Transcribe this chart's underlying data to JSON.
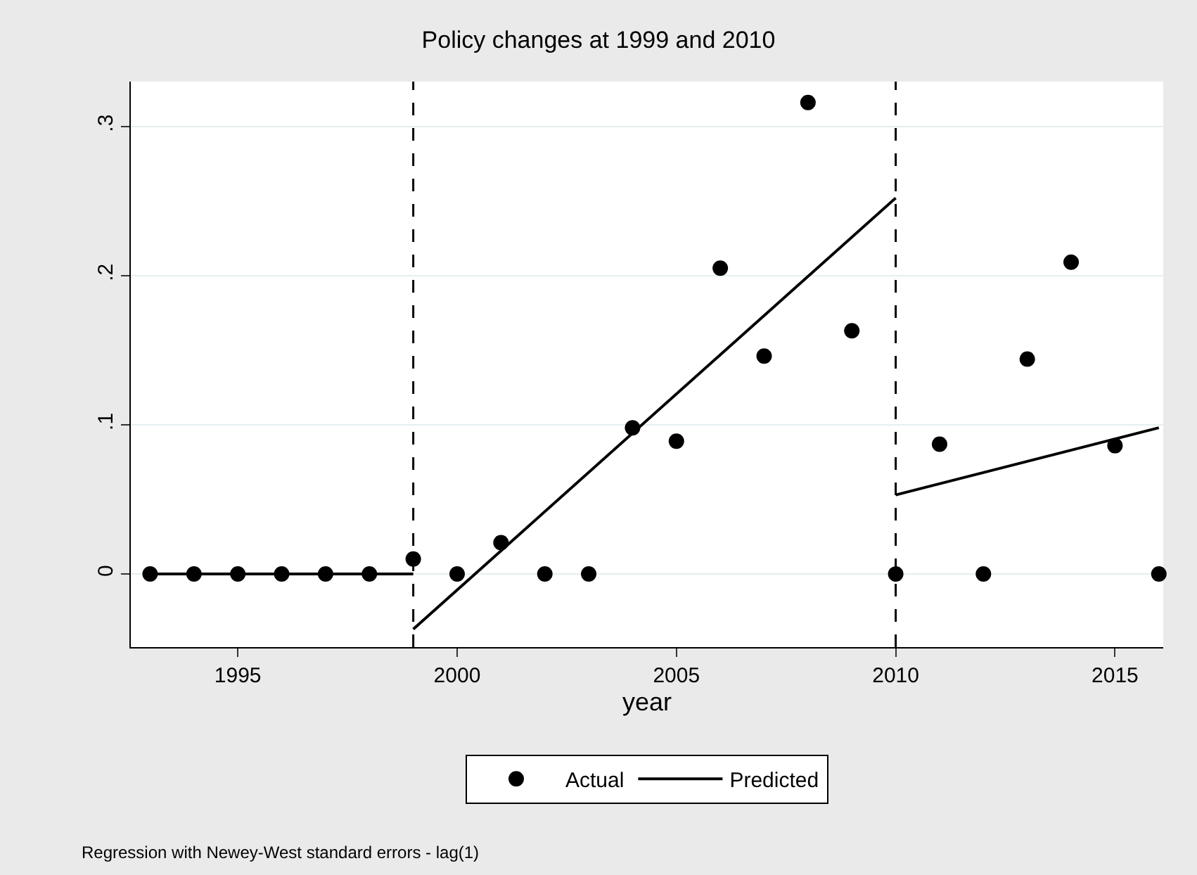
{
  "chart_data": {
    "type": "scatter",
    "title": "Policy changes at 1999 and 2010",
    "xlabel": "year",
    "annotations": [
      "Regression with Newey-West standard errors - lag(1)"
    ],
    "series": [
      {
        "name": "Actual",
        "color": "#000000",
        "marker": "circle",
        "x": [
          1993,
          1994,
          1995,
          1996,
          1997,
          1998,
          1999,
          2000,
          2001,
          2002,
          2003,
          2004,
          2005,
          2006,
          2007,
          2008,
          2009,
          2010,
          2011,
          2012,
          2013,
          2014,
          2015,
          2016
        ],
        "values": [
          0,
          0,
          0,
          0,
          0,
          0,
          0.01,
          0,
          0.021,
          0,
          0,
          0.098,
          0.089,
          0.205,
          0.146,
          0.316,
          0.163,
          0,
          0.087,
          0,
          0.144,
          0.209,
          0.086,
          0
        ]
      },
      {
        "name": "Predicted",
        "type": "line",
        "color": "#000000",
        "line_style": "solid",
        "x": [
          1993,
          1999
        ],
        "values": [
          0,
          0
        ]
      },
      {
        "type": "line",
        "color": "#000000",
        "line_style": "solid",
        "x": [
          1999,
          2010
        ],
        "values": [
          -0.037,
          0.252
        ]
      },
      {
        "type": "line",
        "color": "#000000",
        "line_style": "solid",
        "x": [
          2010,
          2016
        ],
        "values": [
          0.053,
          0.098
        ]
      }
    ],
    "xlim": [
      1992.56,
      2016.1
    ],
    "xticks": [
      1995,
      2000,
      2005,
      2010,
      2015
    ],
    "ylim": [
      -0.049,
      0.33
    ],
    "yticks": [
      {
        "value": 0,
        "label": "0"
      },
      {
        "value": 0.1,
        "label": ".1"
      },
      {
        "value": 0.2,
        "label": ".2"
      },
      {
        "value": 0.3,
        "label": ".3"
      }
    ],
    "ref_lines": [
      {
        "axis": "x",
        "value": 1999,
        "line_style": "dashed",
        "color": "#000000"
      },
      {
        "axis": "x",
        "value": 2010,
        "line_style": "dashed",
        "color": "#000000"
      }
    ],
    "grid": "y",
    "legend": "bottom"
  }
}
